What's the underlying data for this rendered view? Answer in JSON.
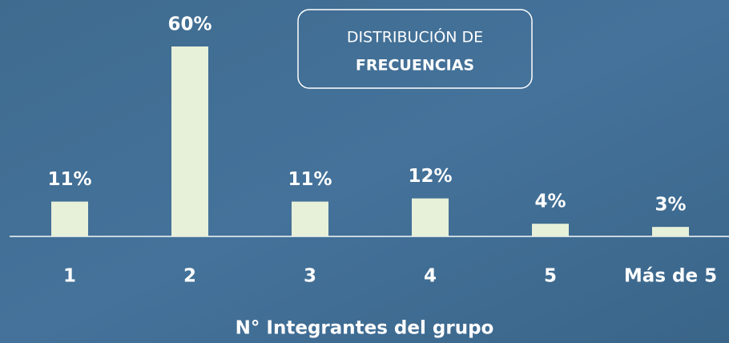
{
  "chart_data": {
    "type": "bar",
    "title_lines": [
      "DISTRIBUCIÓN DE",
      "FRECUENCIAS"
    ],
    "x_label": "N° Integrantes del grupo",
    "categories": [
      "1",
      "2",
      "3",
      "4",
      "5",
      "Más de 5"
    ],
    "values": [
      11,
      60,
      11,
      12,
      4,
      3
    ],
    "value_labels": [
      "11%",
      "60%",
      "11%",
      "12%",
      "4%",
      "3%"
    ],
    "color": "#e7f0d8"
  }
}
